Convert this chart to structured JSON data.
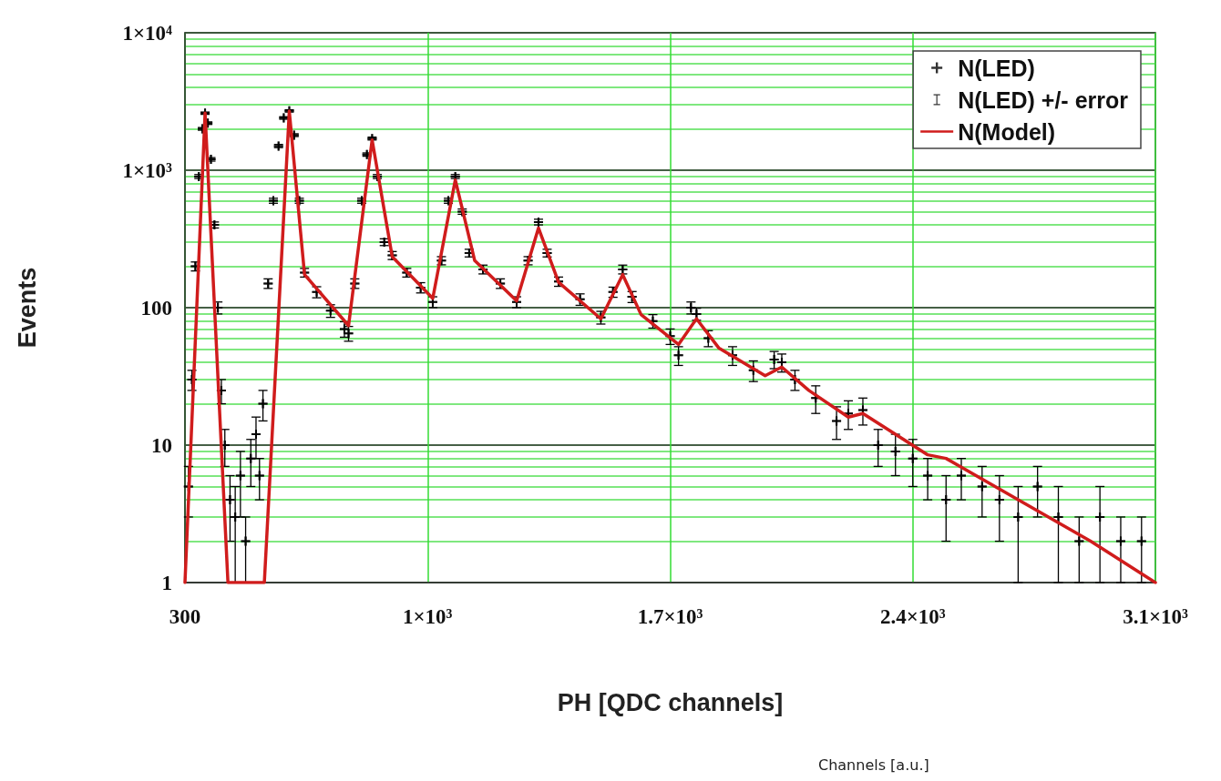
{
  "chart_data": {
    "type": "scatter",
    "xlabel": "PH [QDC channels]",
    "ylabel": "Events",
    "annotations": [
      "Channels [a.u.]"
    ],
    "log": "y",
    "grid": true,
    "legend": "top right",
    "xlim": [
      300,
      3100
    ],
    "xticks": [
      {
        "value": 300,
        "label": "300"
      },
      {
        "value": 1000,
        "label": "1×10³"
      },
      {
        "value": 1700,
        "label": "1.7×10³"
      },
      {
        "value": 2400,
        "label": "2.4×10³"
      },
      {
        "value": 3100,
        "label": "3.1×10³"
      }
    ],
    "ylim": [
      1,
      10000
    ],
    "yticks": [
      1,
      {
        "value": 2,
        "label": null
      },
      {
        "value": 3,
        "label": null
      },
      {
        "value": 4,
        "label": null
      },
      {
        "value": 5,
        "label": null
      },
      {
        "value": 6,
        "label": null
      },
      {
        "value": 7,
        "label": null
      },
      {
        "value": 8,
        "label": null
      },
      {
        "value": 9,
        "label": null
      },
      10,
      {
        "value": 20,
        "label": null
      },
      {
        "value": 30,
        "label": null
      },
      {
        "value": 40,
        "label": null
      },
      {
        "value": 50,
        "label": null
      },
      {
        "value": 60,
        "label": null
      },
      {
        "value": 70,
        "label": null
      },
      {
        "value": 80,
        "label": null
      },
      {
        "value": 90,
        "label": null
      },
      100,
      {
        "value": 200,
        "label": null
      },
      {
        "value": 300,
        "label": null
      },
      {
        "value": 400,
        "label": null
      },
      {
        "value": 500,
        "label": null
      },
      {
        "value": 600,
        "label": null
      },
      {
        "value": 700,
        "label": null
      },
      {
        "value": 800,
        "label": null
      },
      {
        "value": 900,
        "label": null
      },
      {
        "value": 1000,
        "label": "1×10³"
      },
      {
        "value": 2000,
        "label": null
      },
      {
        "value": 3000,
        "label": null
      },
      {
        "value": 4000,
        "label": null
      },
      {
        "value": 5000,
        "label": null
      },
      {
        "value": 6000,
        "label": null
      },
      {
        "value": 7000,
        "label": null
      },
      {
        "value": 8000,
        "label": null
      },
      {
        "value": 9000,
        "label": null
      },
      {
        "value": 10000,
        "label": "1×10⁴"
      }
    ],
    "series": [
      {
        "name": "N(LED)",
        "marker": "cross",
        "color": "#000000",
        "x": [
          310,
          320,
          330,
          340,
          350,
          358,
          366,
          375,
          385,
          395,
          405,
          415,
          430,
          445,
          460,
          475,
          490,
          505,
          515,
          525,
          540,
          555,
          570,
          585,
          601,
          615,
          630,
          645,
          680,
          720,
          760,
          772,
          790,
          810,
          825,
          840,
          855,
          875,
          898,
          940,
          980,
          1015,
          1040,
          1060,
          1080,
          1100,
          1120,
          1160,
          1210,
          1257,
          1290,
          1320,
          1345,
          1378,
          1440,
          1500,
          1535,
          1563,
          1590,
          1650,
          1700,
          1724,
          1760,
          1776,
          1810,
          1880,
          1940,
          2000,
          2022,
          2060,
          2120,
          2180,
          2214,
          2256,
          2300,
          2350,
          2400,
          2443,
          2496,
          2540,
          2600,
          2650,
          2704,
          2760,
          2820,
          2880,
          2940,
          3000,
          3060
        ],
        "values": [
          5,
          30,
          200,
          900,
          2000,
          2600,
          2200,
          1200,
          400,
          100,
          25,
          10,
          4,
          3,
          6,
          2,
          8,
          12,
          6,
          20,
          150,
          600,
          1500,
          2400,
          2700,
          1800,
          600,
          180,
          130,
          95,
          70,
          65,
          150,
          600,
          1300,
          1700,
          900,
          300,
          240,
          180,
          140,
          110,
          220,
          600,
          900,
          500,
          250,
          190,
          150,
          110,
          220,
          420,
          250,
          155,
          115,
          85,
          130,
          190,
          120,
          80,
          62,
          45,
          100,
          90,
          60,
          45,
          35,
          42,
          40,
          30,
          22,
          15,
          17,
          18,
          10,
          9,
          8,
          6,
          4,
          6,
          5,
          4,
          3,
          5,
          3,
          2,
          3,
          2,
          2
        ]
      },
      {
        "name": "N(LED) +/- error",
        "marker": "cross",
        "color": "#000000",
        "x": [
          310,
          320,
          330,
          340,
          350,
          358,
          366,
          375,
          385,
          395,
          405,
          415,
          430,
          445,
          460,
          475,
          490,
          505,
          515,
          525,
          540,
          555,
          570,
          585,
          601,
          615,
          630,
          645,
          680,
          720,
          760,
          772,
          790,
          810,
          825,
          840,
          855,
          875,
          898,
          940,
          980,
          1015,
          1040,
          1060,
          1080,
          1100,
          1120,
          1160,
          1210,
          1257,
          1290,
          1320,
          1345,
          1378,
          1440,
          1500,
          1535,
          1563,
          1590,
          1650,
          1700,
          1724,
          1760,
          1776,
          1810,
          1880,
          1940,
          2000,
          2022,
          2060,
          2120,
          2180,
          2214,
          2256,
          2300,
          2350,
          2400,
          2443,
          2496,
          2540,
          2600,
          2650,
          2704,
          2760,
          2820,
          2880,
          2940,
          3000,
          3060
        ],
        "values": [
          5,
          30,
          200,
          900,
          2000,
          2600,
          2200,
          1200,
          400,
          100,
          25,
          10,
          4,
          3,
          6,
          2,
          8,
          12,
          6,
          20,
          150,
          600,
          1500,
          2400,
          2700,
          1800,
          600,
          180,
          130,
          95,
          70,
          65,
          150,
          600,
          1300,
          1700,
          900,
          300,
          240,
          180,
          140,
          110,
          220,
          600,
          900,
          500,
          250,
          190,
          150,
          110,
          220,
          420,
          250,
          155,
          115,
          85,
          130,
          190,
          120,
          80,
          62,
          45,
          100,
          90,
          60,
          45,
          35,
          42,
          40,
          30,
          22,
          15,
          17,
          18,
          10,
          9,
          8,
          6,
          4,
          6,
          5,
          4,
          3,
          5,
          3,
          2,
          3,
          2,
          2
        ],
        "errors": [
          2,
          5,
          15,
          30,
          45,
          50,
          47,
          35,
          20,
          10,
          5,
          3,
          2,
          2,
          3,
          1,
          3,
          4,
          2,
          5,
          12,
          25,
          40,
          50,
          52,
          42,
          25,
          13,
          12,
          10,
          9,
          8,
          12,
          25,
          36,
          41,
          30,
          17,
          16,
          13,
          12,
          10,
          15,
          25,
          30,
          22,
          16,
          14,
          12,
          10,
          15,
          20,
          16,
          12,
          11,
          9,
          11,
          14,
          11,
          9,
          8,
          7,
          10,
          9,
          8,
          7,
          6,
          6,
          6,
          5,
          5,
          4,
          4,
          4,
          3,
          3,
          3,
          2,
          2,
          2,
          2,
          2,
          2,
          2,
          2,
          1,
          2,
          1,
          1
        ]
      },
      {
        "name": "N(Model)",
        "type": "line",
        "marker": "none",
        "line_style": "solid",
        "color": "#d01c1c",
        "x": [
          300,
          358,
          424,
          529,
          601,
          645,
          772,
          840,
          898,
          1015,
          1080,
          1136,
          1257,
          1320,
          1378,
          1500,
          1563,
          1616,
          1724,
          1776,
          1840,
          1974,
          2022,
          2100,
          2214,
          2256,
          2443,
          2496,
          2704,
          2913,
          3100
        ],
        "values": [
          1,
          2600,
          1,
          1,
          2690,
          174,
          74,
          1660,
          235,
          117,
          850,
          220,
          112,
          380,
          153,
          83,
          174,
          89,
          54,
          83,
          51,
          32,
          37,
          25,
          16,
          17,
          8.5,
          8,
          4,
          2,
          1
        ]
      }
    ]
  }
}
